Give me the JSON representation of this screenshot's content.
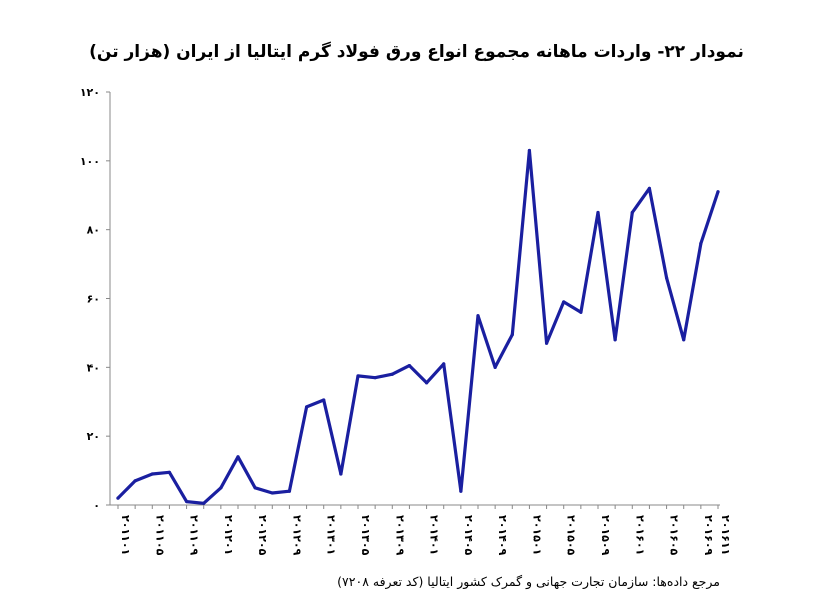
{
  "chart_data": {
    "type": "line",
    "title": "نمودار ۲۲- واردات ماهانه مجموع انواع ورق فولاد گرم ایتالیا از ایران (هزار تن)",
    "xlabel": "",
    "ylabel": "",
    "ylim": [
      0,
      120
    ],
    "ytick_labels": [
      "۰",
      "۲۰",
      "۴۰",
      "۶۰",
      "۸۰",
      "۱۰۰",
      "۱۲۰"
    ],
    "yticks": [
      0,
      20,
      40,
      60,
      80,
      100,
      120
    ],
    "grid": false,
    "legend": "none",
    "line_color": "#1a1fa0",
    "x": [
      "۲۰۱۱۰۱",
      "۲۰۱۱۰۳",
      "۲۰۱۱۰۵",
      "۲۰۱۱۰۷",
      "۲۰۱۱۰۹",
      "۲۰۱۱۱۱",
      "۲۰۱۲۰۱",
      "۲۰۱۲۰۳",
      "۲۰۱۲۰۵",
      "۲۰۱۲۰۷",
      "۲۰۱۲۰۹",
      "۲۰۱۲۱۱",
      "۲۰۱۳۰۱",
      "۲۰۱۳۰۳",
      "۲۰۱۳۰۵",
      "۲۰۱۳۰۷",
      "۲۰۱۳۰۹",
      "۲۰۱۳۱۱",
      "۲۰۱۴۰۱",
      "۲۰۱۴۰۳",
      "۲۰۱۴۰۵",
      "۲۰۱۴۰۷",
      "۲۰۱۴۰۹",
      "۲۰۱۴۱۱",
      "۲۰۱۵۰۱",
      "۲۰۱۵۰۳",
      "۲۰۱۵۰۵",
      "۲۰۱۵۰۷",
      "۲۰۱۵۰۹",
      "۲۰۱۵۱۱",
      "۲۰۱۶۰۱",
      "۲۰۱۶۰۳",
      "۲۰۱۶۰۵",
      "۲۰۱۶۰۷",
      "۲۰۱۶۰۹",
      "۲۰۱۶۱۱"
    ],
    "xtick_labels": [
      "۲۰۱۱۰۱",
      "۲۰۱۱۰۵",
      "۲۰۱۱۰۹",
      "۲۰۱۲۰۱",
      "۲۰۱۲۰۵",
      "۲۰۱۲۰۹",
      "۲۰۱۳۰۱",
      "۲۰۱۳۰۵",
      "۲۰۱۳۰۹",
      "۲۰۱۴۰۱",
      "۲۰۱۴۰۵",
      "۲۰۱۴۰۹",
      "۲۰۱۵۰۱",
      "۲۰۱۵۰۵",
      "۲۰۱۵۰۹",
      "۲۰۱۶۰۱",
      "۲۰۱۶۰۵",
      "۲۰۱۶۰۹",
      "۲۰۱۶۱۱"
    ],
    "values": [
      2,
      7,
      9,
      9.5,
      1,
      0.5,
      5,
      14,
      5,
      3.5,
      4,
      28.5,
      30.5,
      9,
      37.5,
      37,
      38,
      40.5,
      35.5,
      41,
      4,
      55,
      40,
      49.5,
      103,
      47,
      59,
      56,
      85,
      48,
      85,
      92,
      66,
      48,
      76,
      91
    ]
  },
  "source_note": "مرجع داده‌ها: سازمان تجارت جهانی و گمرک کشور ایتالیا (کد تعرفه ۷۲۰۸)"
}
